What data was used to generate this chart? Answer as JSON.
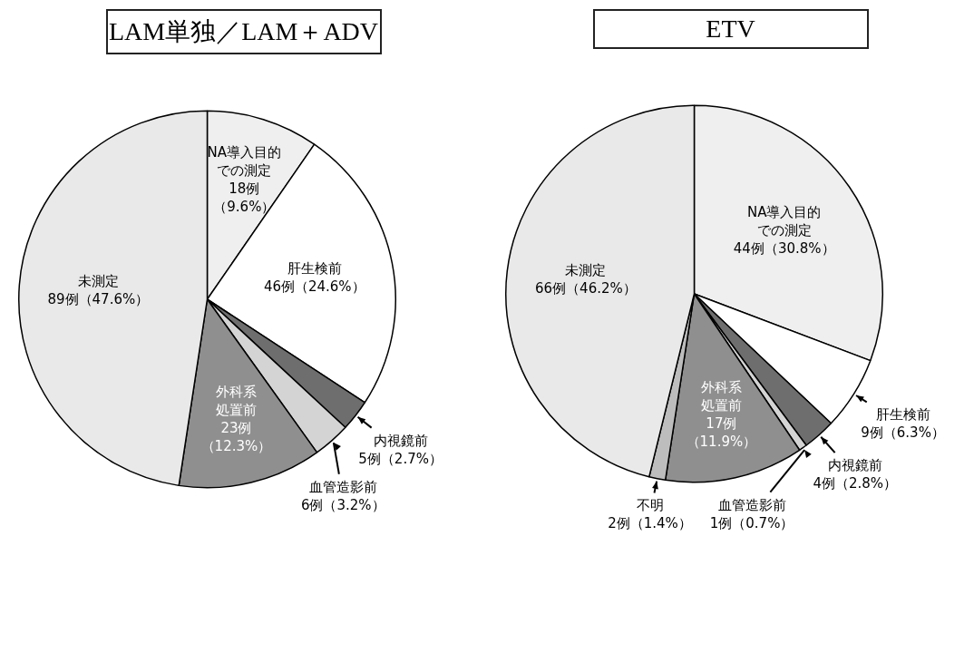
{
  "chart_data": [
    {
      "type": "pie",
      "title": "LAM単独／LAM＋ADV",
      "categories": [
        "NA導入目的での測定",
        "肝生検前",
        "内視鏡前",
        "血管造影前",
        "外科系処置前",
        "未測定"
      ],
      "values": [
        18,
        46,
        5,
        6,
        23,
        89
      ],
      "colors": [
        "#efefef",
        "#ffffff",
        "#6e6e6e",
        "#d4d4d4",
        "#8f8f8f",
        "#e9e9e9"
      ],
      "value_labels": [
        "18例（9.6%）",
        "46例（24.6%）",
        "5例（2.7%）",
        "6例（3.2%）",
        "23例（12.3%）",
        "89例（47.6%）"
      ]
    },
    {
      "type": "pie",
      "title": "ETV",
      "categories": [
        "NA導入目的での測定",
        "肝生検前",
        "内視鏡前",
        "血管造影前",
        "外科系処置前",
        "不明",
        "未測定"
      ],
      "values": [
        44,
        9,
        4,
        1,
        17,
        2,
        66
      ],
      "colors": [
        "#efefef",
        "#ffffff",
        "#6e6e6e",
        "#d4d4d4",
        "#8f8f8f",
        "#bdbdbd",
        "#e9e9e9"
      ],
      "value_labels": [
        "44例（30.8%）",
        "9例（6.3%）",
        "4例（2.8%）",
        "1例（0.7%）",
        "17例（11.9%）",
        "2例（1.4%）",
        "66例（46.2%）"
      ]
    }
  ]
}
